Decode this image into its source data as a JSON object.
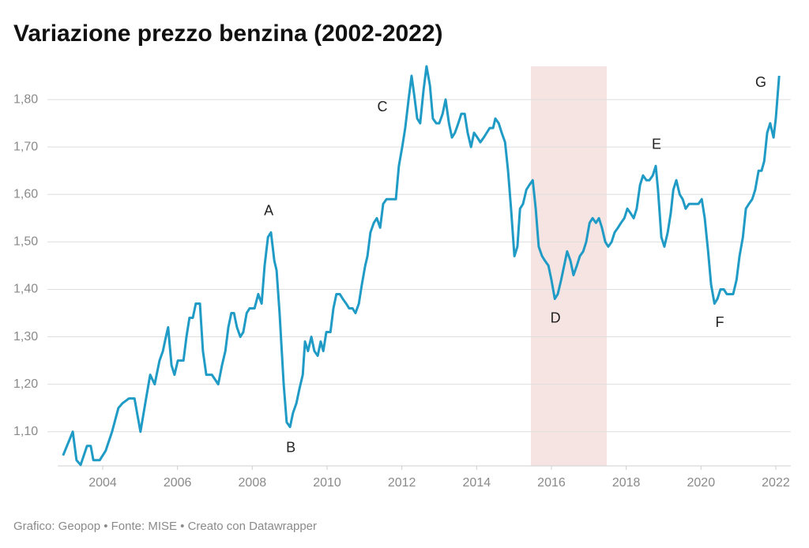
{
  "chart_data": {
    "type": "line",
    "title": "Variazione prezzo benzina (2002-2022)",
    "footer": "Grafico: Geopop • Fonte: MISE • Creato con Datawrapper",
    "xlim": [
      2002.8,
      2022.4
    ],
    "ylim": [
      1.028,
      1.87
    ],
    "xticks": [
      2004,
      2006,
      2008,
      2010,
      2012,
      2014,
      2016,
      2018,
      2020,
      2022
    ],
    "yticks": [
      {
        "value": 1.1,
        "label": "1,10"
      },
      {
        "value": 1.2,
        "label": "1,20"
      },
      {
        "value": 1.3,
        "label": "1,30"
      },
      {
        "value": 1.4,
        "label": "1,40"
      },
      {
        "value": 1.5,
        "label": "1,50"
      },
      {
        "value": 1.6,
        "label": "1,60"
      },
      {
        "value": 1.7,
        "label": "1,70"
      },
      {
        "value": 1.8,
        "label": "1,80"
      }
    ],
    "grid": true,
    "highlight_range": [
      2015.45,
      2017.48
    ],
    "highlight_color": "#f6e4e2",
    "x": [
      2002.94,
      2003.2,
      2003.3,
      2003.41,
      2003.58,
      2003.68,
      2003.75,
      2003.92,
      2004.08,
      2004.25,
      2004.42,
      2004.53,
      2004.7,
      2004.85,
      2005.01,
      2005.16,
      2005.27,
      2005.39,
      2005.52,
      2005.61,
      2005.69,
      2005.75,
      2005.84,
      2005.92,
      2006.01,
      2006.16,
      2006.24,
      2006.32,
      2006.41,
      2006.49,
      2006.6,
      2006.68,
      2006.77,
      2006.92,
      2007.09,
      2007.19,
      2007.28,
      2007.36,
      2007.44,
      2007.51,
      2007.59,
      2007.68,
      2007.76,
      2007.85,
      2007.93,
      2008.06,
      2008.16,
      2008.25,
      2008.33,
      2008.42,
      2008.5,
      2008.59,
      2008.65,
      2008.73,
      2008.84,
      2008.92,
      2009.01,
      2009.09,
      2009.18,
      2009.26,
      2009.35,
      2009.41,
      2009.49,
      2009.58,
      2009.66,
      2009.75,
      2009.83,
      2009.9,
      2009.98,
      2010.09,
      2010.17,
      2010.25,
      2010.34,
      2010.42,
      2010.51,
      2010.59,
      2010.68,
      2010.76,
      2010.85,
      2010.93,
      2011.02,
      2011.08,
      2011.16,
      2011.25,
      2011.33,
      2011.42,
      2011.5,
      2011.59,
      2011.75,
      2011.84,
      2011.92,
      2012.01,
      2012.09,
      2012.18,
      2012.26,
      2012.33,
      2012.41,
      2012.49,
      2012.58,
      2012.66,
      2012.75,
      2012.83,
      2012.92,
      2013.0,
      2013.09,
      2013.17,
      2013.26,
      2013.34,
      2013.42,
      2013.51,
      2013.59,
      2013.68,
      2013.76,
      2013.85,
      2013.93,
      2014.02,
      2014.1,
      2014.19,
      2014.27,
      2014.35,
      2014.44,
      2014.5,
      2014.59,
      2014.67,
      2014.76,
      2014.84,
      2014.92,
      2015.01,
      2015.09,
      2015.16,
      2015.24,
      2015.33,
      2015.41,
      2015.5,
      2015.58,
      2015.66,
      2015.75,
      2015.83,
      2015.92,
      2016.0,
      2016.09,
      2016.17,
      2016.26,
      2016.34,
      2016.42,
      2016.51,
      2016.59,
      2016.68,
      2016.76,
      2016.85,
      2016.93,
      2017.02,
      2017.1,
      2017.19,
      2017.27,
      2017.35,
      2017.44,
      2017.52,
      2017.61,
      2017.69,
      2017.78,
      2017.86,
      2017.95,
      2018.03,
      2018.12,
      2018.2,
      2018.28,
      2018.37,
      2018.45,
      2018.54,
      2018.62,
      2018.71,
      2018.79,
      2018.85,
      2018.94,
      2019.02,
      2019.11,
      2019.19,
      2019.26,
      2019.34,
      2019.43,
      2019.51,
      2019.59,
      2019.68,
      2019.85,
      2019.93,
      2020.02,
      2020.1,
      2020.19,
      2020.27,
      2020.36,
      2020.44,
      2020.52,
      2020.61,
      2020.69,
      2020.86,
      2020.95,
      2021.03,
      2021.12,
      2021.2,
      2021.28,
      2021.37,
      2021.45,
      2021.54,
      2021.62,
      2021.69,
      2021.77,
      2021.85,
      2021.94,
      2022.0,
      2022.09
    ],
    "series": [
      {
        "name": "Prezzo benzina",
        "color": "#1f9bc6",
        "values": [
          1.05,
          1.1,
          1.04,
          1.03,
          1.07,
          1.07,
          1.04,
          1.04,
          1.06,
          1.1,
          1.15,
          1.16,
          1.17,
          1.17,
          1.1,
          1.17,
          1.22,
          1.2,
          1.25,
          1.27,
          1.3,
          1.32,
          1.24,
          1.22,
          1.25,
          1.25,
          1.3,
          1.34,
          1.34,
          1.37,
          1.37,
          1.27,
          1.22,
          1.22,
          1.2,
          1.24,
          1.27,
          1.32,
          1.35,
          1.35,
          1.32,
          1.3,
          1.31,
          1.35,
          1.36,
          1.36,
          1.39,
          1.37,
          1.45,
          1.51,
          1.52,
          1.46,
          1.44,
          1.35,
          1.2,
          1.12,
          1.11,
          1.14,
          1.16,
          1.19,
          1.22,
          1.29,
          1.27,
          1.3,
          1.27,
          1.26,
          1.29,
          1.27,
          1.31,
          1.31,
          1.36,
          1.39,
          1.39,
          1.38,
          1.37,
          1.36,
          1.36,
          1.35,
          1.37,
          1.41,
          1.45,
          1.47,
          1.52,
          1.54,
          1.55,
          1.53,
          1.58,
          1.59,
          1.59,
          1.59,
          1.66,
          1.7,
          1.74,
          1.8,
          1.85,
          1.81,
          1.76,
          1.75,
          1.82,
          1.87,
          1.83,
          1.76,
          1.75,
          1.75,
          1.77,
          1.8,
          1.75,
          1.72,
          1.73,
          1.75,
          1.77,
          1.77,
          1.73,
          1.7,
          1.73,
          1.72,
          1.71,
          1.72,
          1.73,
          1.74,
          1.74,
          1.76,
          1.75,
          1.73,
          1.71,
          1.65,
          1.57,
          1.47,
          1.49,
          1.57,
          1.58,
          1.61,
          1.62,
          1.63,
          1.57,
          1.49,
          1.47,
          1.46,
          1.45,
          1.42,
          1.38,
          1.39,
          1.42,
          1.45,
          1.48,
          1.46,
          1.43,
          1.45,
          1.47,
          1.48,
          1.5,
          1.54,
          1.55,
          1.54,
          1.55,
          1.53,
          1.5,
          1.49,
          1.5,
          1.52,
          1.53,
          1.54,
          1.55,
          1.57,
          1.56,
          1.55,
          1.57,
          1.62,
          1.64,
          1.63,
          1.63,
          1.64,
          1.66,
          1.61,
          1.51,
          1.49,
          1.52,
          1.56,
          1.61,
          1.63,
          1.6,
          1.59,
          1.57,
          1.58,
          1.58,
          1.58,
          1.59,
          1.55,
          1.48,
          1.41,
          1.37,
          1.38,
          1.4,
          1.4,
          1.39,
          1.39,
          1.42,
          1.47,
          1.51,
          1.57,
          1.58,
          1.59,
          1.61,
          1.65,
          1.65,
          1.67,
          1.73,
          1.75,
          1.72,
          1.76,
          1.85
        ]
      }
    ],
    "annotations": [
      {
        "text": "A",
        "x": 2008.44,
        "y": 1.564
      },
      {
        "text": "B",
        "x": 2009.03,
        "y": 1.065
      },
      {
        "text": "C",
        "x": 2011.48,
        "y": 1.783
      },
      {
        "text": "D",
        "x": 2016.11,
        "y": 1.338
      },
      {
        "text": "E",
        "x": 2018.81,
        "y": 1.704
      },
      {
        "text": "F",
        "x": 2020.5,
        "y": 1.329
      },
      {
        "text": "G",
        "x": 2021.6,
        "y": 1.835
      }
    ]
  }
}
